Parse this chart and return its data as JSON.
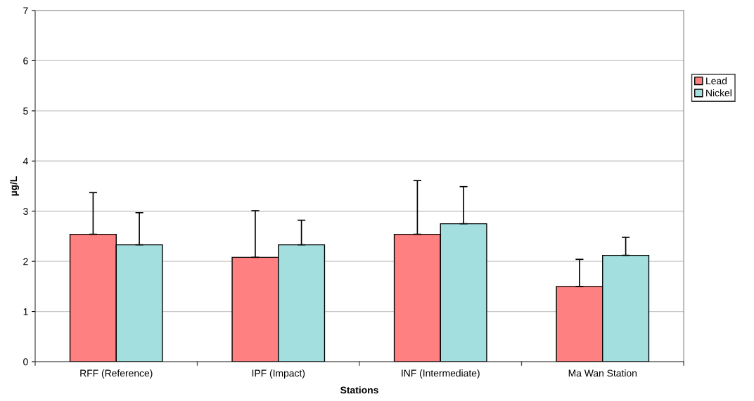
{
  "chart_data": {
    "type": "bar",
    "xlabel": "Stations",
    "ylabel": "µg/L",
    "categories": [
      "RFF (Reference)",
      "IPF (Impact)",
      "INF (Intermediate)",
      "Ma Wan Station"
    ],
    "series": [
      {
        "name": "Lead",
        "color": "#ff8080",
        "values": [
          2.54,
          2.08,
          2.54,
          1.5
        ],
        "errors": [
          [
            2.54,
            3.37
          ],
          [
            2.08,
            3.01
          ],
          [
            2.54,
            3.61
          ],
          [
            1.5,
            2.04
          ]
        ]
      },
      {
        "name": "Nickel",
        "color": "#a4dfe0",
        "values": [
          2.33,
          2.33,
          2.75,
          2.12
        ],
        "errors": [
          [
            2.33,
            2.97
          ],
          [
            2.33,
            2.82
          ],
          [
            2.75,
            3.49
          ],
          [
            2.12,
            2.48
          ]
        ]
      }
    ],
    "ylim": [
      0,
      7
    ],
    "yticks": [
      0,
      1,
      2,
      3,
      4,
      5,
      6,
      7
    ],
    "grid": "y",
    "legend": "right"
  }
}
